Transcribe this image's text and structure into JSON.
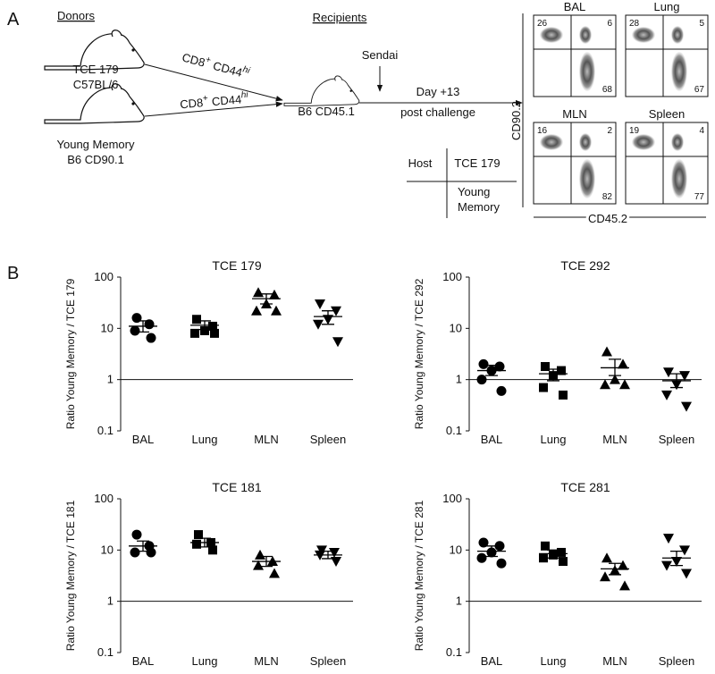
{
  "panel_a": {
    "panel_label": "A",
    "donors_heading": "Donors",
    "recipients_heading": "Recipients",
    "donor_1": [
      "TCE 179",
      "C57BL/6"
    ],
    "donor_2": [
      "Young Memory",
      "B6 CD90.1"
    ],
    "arrow_labels": [
      {
        "base": "CD8",
        "sup": "+",
        "base2": "CD44",
        "sup2": "hi"
      },
      {
        "base": "CD8",
        "sup": "+",
        "base2": "CD44",
        "sup2": "hi"
      }
    ],
    "recipient": "B6 CD45.1",
    "challenge": "Sendai",
    "timepoint": [
      "Day +13",
      "post challenge"
    ],
    "key": {
      "host": "Host",
      "donor": "TCE 179",
      "young": [
        "Young",
        "Memory"
      ]
    },
    "flow_y_label": "CD90.2",
    "flow_x_label": "CD45.2",
    "flow_plots": [
      {
        "title": "BAL",
        "upper_left": 26,
        "upper_right": 6,
        "lower_right": 68
      },
      {
        "title": "Lung",
        "upper_left": 28,
        "upper_right": 5,
        "lower_right": 67
      },
      {
        "title": "MLN",
        "upper_left": 16,
        "upper_right": 2,
        "lower_right": 82
      },
      {
        "title": "Spleen",
        "upper_left": 19,
        "upper_right": 4,
        "lower_right": 77
      }
    ]
  },
  "panel_b_label": "B",
  "chart_data": [
    {
      "type": "strip",
      "title": "TCE 179",
      "ylabel": "Ratio Young Memory / TCE 179",
      "categories": [
        "BAL",
        "Lung",
        "MLN",
        "Spleen"
      ],
      "markers": [
        "circle",
        "square",
        "triangle-up",
        "triangle-down"
      ],
      "values": [
        [
          16,
          12,
          9,
          6.5
        ],
        [
          15,
          11,
          9,
          8,
          8
        ],
        [
          50,
          45,
          30,
          22,
          22
        ],
        [
          30,
          22,
          15,
          12,
          5.5
        ]
      ],
      "means": [
        11,
        11.5,
        38,
        17
      ],
      "error_low": [
        8.5,
        9.5,
        30,
        12
      ],
      "error_high": [
        14,
        14,
        47,
        22
      ],
      "ylim": [
        0.1,
        100
      ],
      "yticks": [
        0.1,
        1,
        10,
        100
      ],
      "log_y": true,
      "reference_line": 1,
      "color": "#000000"
    },
    {
      "type": "strip",
      "title": "TCE 292",
      "ylabel": "Ratio Young Memory / TCE 292",
      "categories": [
        "BAL",
        "Lung",
        "MLN",
        "Spleen"
      ],
      "markers": [
        "circle",
        "square",
        "triangle-up",
        "triangle-down"
      ],
      "values": [
        [
          2,
          1.8,
          1.5,
          1.0,
          0.6
        ],
        [
          1.8,
          1.5,
          1.2,
          0.7,
          0.5
        ],
        [
          3.5,
          2,
          1.0,
          0.8,
          0.8
        ],
        [
          1.4,
          1.2,
          0.8,
          0.5,
          0.3
        ]
      ],
      "means": [
        1.5,
        1.3,
        1.7,
        0.95
      ],
      "error_low": [
        1.2,
        0.95,
        1.2,
        0.7
      ],
      "error_high": [
        1.9,
        1.6,
        2.5,
        1.3
      ],
      "ylim": [
        0.1,
        100
      ],
      "yticks": [
        0.1,
        1,
        10,
        100
      ],
      "log_y": true,
      "reference_line": 1,
      "color": "#000000"
    },
    {
      "type": "strip",
      "title": "TCE 181",
      "ylabel": "Ratio Young Memory / TCE 181",
      "categories": [
        "BAL",
        "Lung",
        "MLN",
        "Spleen"
      ],
      "markers": [
        "circle",
        "square",
        "triangle-up",
        "triangle-down"
      ],
      "values": [
        [
          20,
          12,
          9,
          9
        ],
        [
          20,
          14,
          13,
          10
        ],
        [
          8,
          6,
          5,
          3.5
        ],
        [
          10,
          9,
          8,
          6
        ]
      ],
      "means": [
        12,
        14,
        6,
        8
      ],
      "error_low": [
        9.5,
        11.5,
        4.8,
        6.8
      ],
      "error_high": [
        15,
        17,
        7.5,
        9.5
      ],
      "ylim": [
        0.1,
        100
      ],
      "yticks": [
        0.1,
        1,
        10,
        100
      ],
      "log_y": true,
      "reference_line": 1,
      "color": "#000000"
    },
    {
      "type": "strip",
      "title": "TCE 281",
      "ylabel": "Ratio Young Memory / TCE 281",
      "categories": [
        "BAL",
        "Lung",
        "MLN",
        "Spleen"
      ],
      "markers": [
        "circle",
        "square",
        "triangle-up",
        "triangle-down"
      ],
      "values": [
        [
          14,
          12,
          9,
          7,
          5.5
        ],
        [
          12,
          9,
          8,
          7,
          6
        ],
        [
          7,
          5,
          4,
          3,
          2
        ],
        [
          17,
          10,
          6,
          5,
          3.5
        ]
      ],
      "means": [
        9.5,
        8.5,
        4.3,
        7
      ],
      "error_low": [
        7.5,
        7,
        3.3,
        5
      ],
      "error_high": [
        12,
        10,
        5.5,
        9.5
      ],
      "ylim": [
        0.1,
        100
      ],
      "yticks": [
        0.1,
        1,
        10,
        100
      ],
      "log_y": true,
      "reference_line": 1,
      "color": "#000000"
    }
  ]
}
